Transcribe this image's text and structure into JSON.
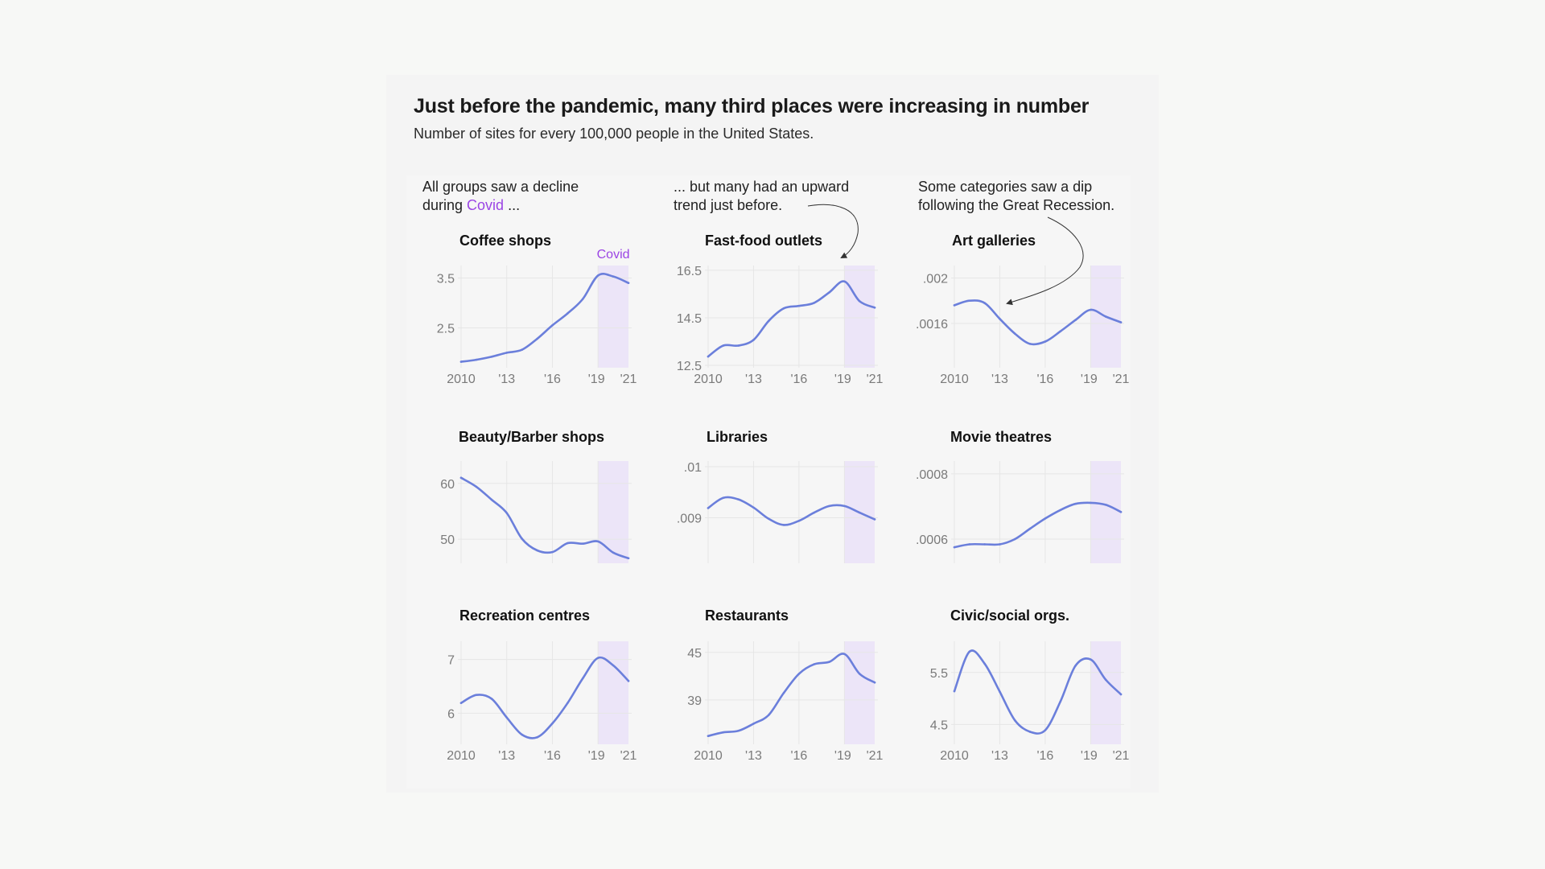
{
  "header": {
    "title": "Just before the pandemic, many third places were increasing in number",
    "subtitle": "Number of sites for every 100,000 people in the United States."
  },
  "annotations": [
    {
      "line1": "All groups saw a decline",
      "line2_pre": "during ",
      "line2_highlight": "Covid",
      "line2_post": " ..."
    },
    {
      "line1": "... but many had an upward",
      "line2": "trend just before."
    },
    {
      "line1": "Some categories saw a dip",
      "line2": "following the Great Recession."
    }
  ],
  "colors": {
    "line": "#6b7fdb",
    "covid_shade": "#ece5f8",
    "covid_text": "#9b45e4",
    "grid": "#e6e6e6",
    "tick_text": "#7a7a7a",
    "arrow": "#333333"
  },
  "chart_data": [
    {
      "type": "line",
      "title": "Coffee shops",
      "covid_label": "Covid",
      "x": [
        2010,
        2011,
        2012,
        2013,
        2014,
        2015,
        2016,
        2017,
        2018,
        2019,
        2020,
        2021
      ],
      "values": [
        1.82,
        1.86,
        1.92,
        2.0,
        2.06,
        2.28,
        2.55,
        2.79,
        3.08,
        3.55,
        3.53,
        3.4
      ],
      "ylim": [
        1.7,
        3.75
      ],
      "yticks": [
        2.5,
        3.5
      ],
      "ytick_labels": [
        "2.5",
        "3.5"
      ],
      "xticks": [
        2010,
        2013,
        2016,
        2019,
        2021
      ],
      "xtick_labels": [
        "2010",
        "'13",
        "'16",
        "'19",
        "'21"
      ],
      "covid_range": [
        2019,
        2021
      ]
    },
    {
      "type": "line",
      "title": "Fast-food outlets",
      "x": [
        2010,
        2011,
        2012,
        2013,
        2014,
        2015,
        2016,
        2017,
        2018,
        2019,
        2020,
        2021
      ],
      "values": [
        12.87,
        13.33,
        13.33,
        13.57,
        14.37,
        14.9,
        15.0,
        15.13,
        15.57,
        16.03,
        15.2,
        14.93
      ],
      "ylim": [
        12.4,
        16.7
      ],
      "yticks": [
        12.5,
        14.5,
        16.5
      ],
      "ytick_labels": [
        "12.5",
        "14.5",
        "16.5"
      ],
      "xticks": [
        2010,
        2013,
        2016,
        2019,
        2021
      ],
      "xtick_labels": [
        "2010",
        "'13",
        "'16",
        "'19",
        "'21"
      ],
      "covid_range": [
        2019,
        2021
      ]
    },
    {
      "type": "line",
      "title": "Art galleries",
      "x": [
        2010,
        2011,
        2012,
        2013,
        2014,
        2015,
        2016,
        2017,
        2018,
        2019,
        2020,
        2021
      ],
      "values": [
        0.00176,
        0.0018,
        0.00178,
        0.00164,
        0.00151,
        0.00142,
        0.00144,
        0.00153,
        0.00163,
        0.00172,
        0.00166,
        0.00161
      ],
      "ylim": [
        0.00121,
        0.00211
      ],
      "yticks": [
        0.0016,
        0.002
      ],
      "ytick_labels": [
        ".0016",
        ".002"
      ],
      "xticks": [
        2010,
        2013,
        2016,
        2019,
        2021
      ],
      "xtick_labels": [
        "2010",
        "'13",
        "'16",
        "'19",
        "'21"
      ],
      "covid_range": [
        2019,
        2021
      ]
    },
    {
      "type": "line",
      "title": "Beauty/Barber shops",
      "x": [
        2010,
        2011,
        2012,
        2013,
        2014,
        2015,
        2016,
        2017,
        2018,
        2019,
        2020,
        2021
      ],
      "values": [
        61.0,
        59.4,
        57.1,
        54.7,
        50.1,
        48.0,
        47.7,
        49.3,
        49.2,
        49.6,
        47.6,
        46.6
      ],
      "ylim": [
        45.7,
        64.0
      ],
      "yticks": [
        50,
        60
      ],
      "ytick_labels": [
        "50",
        "60"
      ],
      "xticks": [],
      "xtick_labels": [],
      "covid_range": [
        2019,
        2021
      ]
    },
    {
      "type": "line",
      "title": "Libraries",
      "x": [
        2010,
        2011,
        2012,
        2013,
        2014,
        2015,
        2016,
        2017,
        2018,
        2019,
        2020,
        2021
      ],
      "values": [
        0.00919,
        0.00939,
        0.00936,
        0.0092,
        0.00898,
        0.00886,
        0.00894,
        0.0091,
        0.00923,
        0.00923,
        0.0091,
        0.00897
      ],
      "ylim": [
        0.00811,
        0.01011
      ],
      "yticks": [
        0.009,
        0.01
      ],
      "ytick_labels": [
        ".009",
        ".01"
      ],
      "xticks": [],
      "xtick_labels": [],
      "covid_range": [
        2019,
        2021
      ]
    },
    {
      "type": "line",
      "title": "Movie theatres",
      "x": [
        2010,
        2011,
        2012,
        2013,
        2014,
        2015,
        2016,
        2017,
        2018,
        2019,
        2020,
        2021
      ],
      "values": [
        0.000575,
        0.000584,
        0.000584,
        0.000584,
        0.0006,
        0.000632,
        0.000663,
        0.000689,
        0.000708,
        0.000711,
        0.000705,
        0.000683
      ],
      "ylim": [
        0.000526,
        0.000839
      ],
      "yticks": [
        0.0006,
        0.0008
      ],
      "ytick_labels": [
        ".0006",
        ".0008"
      ],
      "xticks": [],
      "xtick_labels": [],
      "covid_range": [
        2019,
        2021
      ]
    },
    {
      "type": "line",
      "title": "Recreation centres",
      "x": [
        2010,
        2011,
        2012,
        2013,
        2014,
        2015,
        2016,
        2017,
        2018,
        2019,
        2020,
        2021
      ],
      "values": [
        6.19,
        6.34,
        6.27,
        5.92,
        5.6,
        5.55,
        5.81,
        6.19,
        6.65,
        7.03,
        6.89,
        6.6
      ],
      "ylim": [
        5.42,
        7.34
      ],
      "yticks": [
        6,
        7
      ],
      "ytick_labels": [
        "6",
        "7"
      ],
      "xticks": [
        2010,
        2013,
        2016,
        2019,
        2021
      ],
      "xtick_labels": [
        "2010",
        "'13",
        "'16",
        "'19",
        "'21"
      ],
      "covid_range": [
        2019,
        2021
      ]
    },
    {
      "type": "line",
      "title": "Restaurants",
      "x": [
        2010,
        2011,
        2012,
        2013,
        2014,
        2015,
        2016,
        2017,
        2018,
        2019,
        2020,
        2021
      ],
      "values": [
        34.45,
        34.9,
        35.1,
        36.0,
        37.1,
        39.9,
        42.3,
        43.5,
        43.8,
        44.8,
        42.3,
        41.2
      ],
      "ylim": [
        33.4,
        46.4
      ],
      "yticks": [
        39,
        45
      ],
      "ytick_labels": [
        "39",
        "45"
      ],
      "xticks": [
        2010,
        2013,
        2016,
        2019,
        2021
      ],
      "xtick_labels": [
        "2010",
        "'13",
        "'16",
        "'19",
        "'21"
      ],
      "covid_range": [
        2019,
        2021
      ]
    },
    {
      "type": "line",
      "title": "Civic/social orgs.",
      "x": [
        2010,
        2011,
        2012,
        2013,
        2014,
        2015,
        2016,
        2017,
        2018,
        2019,
        2020,
        2021
      ],
      "values": [
        5.14,
        5.9,
        5.67,
        5.13,
        4.58,
        4.36,
        4.39,
        4.94,
        5.63,
        5.75,
        5.36,
        5.08
      ],
      "ylim": [
        4.12,
        6.1
      ],
      "yticks": [
        4.5,
        5.5
      ],
      "ytick_labels": [
        "4.5",
        "5.5"
      ],
      "xticks": [
        2010,
        2013,
        2016,
        2019,
        2021
      ],
      "xtick_labels": [
        "2010",
        "'13",
        "'16",
        "'19",
        "'21"
      ],
      "covid_range": [
        2019,
        2021
      ]
    }
  ]
}
